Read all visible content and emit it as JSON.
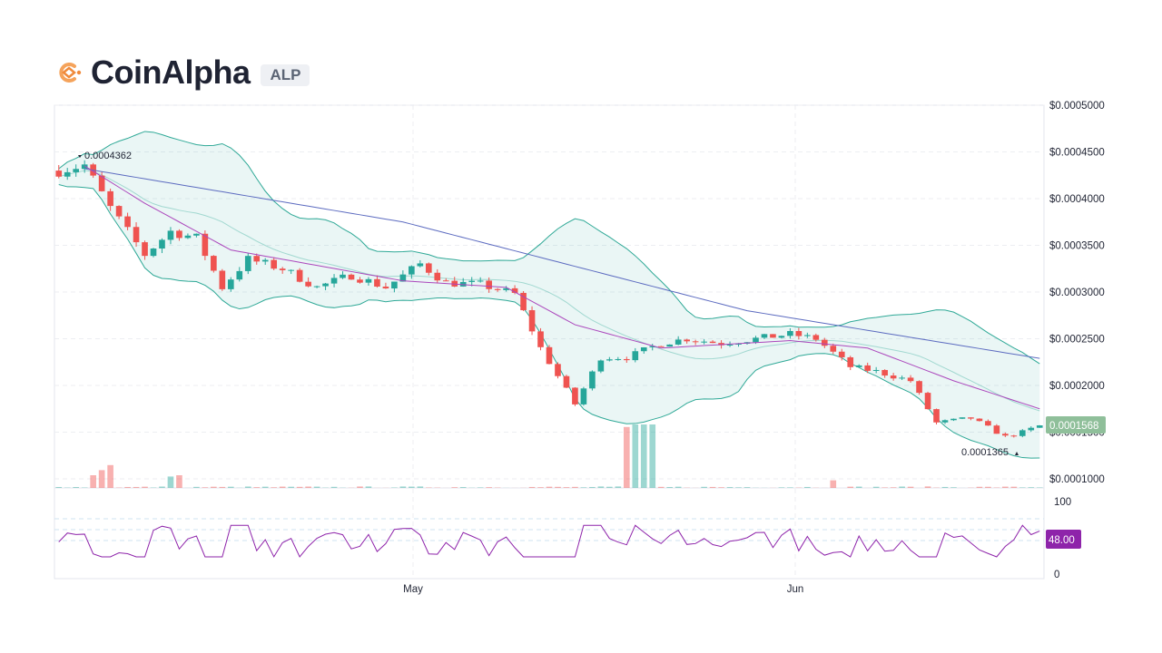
{
  "header": {
    "name": "CoinAlpha",
    "ticker": "ALP"
  },
  "colors": {
    "up": "#26a69a",
    "down": "#ef5350",
    "bands": "#1aa08c",
    "ma_long": "#5c6bc0",
    "ma_short": "#ab47bc",
    "rsi": "#8e24aa",
    "last_price_tag": "#8fbf9a",
    "rsi_tag": "#8e24aa"
  },
  "chart_data": {
    "type": "candlestick",
    "price_axis": {
      "min": 0.0001,
      "max": 0.0005,
      "ticks": [
        "$0.0005000",
        "$0.0004500",
        "$0.0004000",
        "$0.0003500",
        "$0.0003000",
        "$0.0002500",
        "$0.0002000",
        "$0.0001500",
        "$0.0001000"
      ]
    },
    "x_labels": [
      "May",
      "Jun"
    ],
    "last_price": "0.0001568",
    "high_marker": "0.0004362",
    "low_marker": "0.0001365",
    "price_path": [
      [
        0,
        0.00043
      ],
      [
        3,
        0.000436
      ],
      [
        6,
        0.00039
      ],
      [
        10,
        0.00034
      ],
      [
        13,
        0.000365
      ],
      [
        16,
        0.000358
      ],
      [
        19,
        0.000305
      ],
      [
        22,
        0.000335
      ],
      [
        26,
        0.000325
      ],
      [
        30,
        0.000305
      ],
      [
        34,
        0.000318
      ],
      [
        38,
        0.000305
      ],
      [
        42,
        0.00033
      ],
      [
        45,
        0.00031
      ],
      [
        49,
        0.000308
      ],
      [
        53,
        0.000298
      ],
      [
        56,
        0.00024
      ],
      [
        60,
        0.00018
      ],
      [
        63,
        0.00023
      ],
      [
        66,
        0.00023
      ],
      [
        70,
        0.000245
      ],
      [
        73,
        0.00025
      ],
      [
        77,
        0.000245
      ],
      [
        81,
        0.00025
      ],
      [
        85,
        0.000255
      ],
      [
        88,
        0.00025
      ],
      [
        92,
        0.00022
      ],
      [
        95,
        0.000215
      ],
      [
        99,
        0.000205
      ],
      [
        102,
        0.00016
      ],
      [
        106,
        0.000165
      ],
      [
        110,
        0.000145
      ],
      [
        112,
        0.00015
      ],
      [
        114,
        0.0001568
      ]
    ],
    "ma_long": [
      [
        3,
        0.000432
      ],
      [
        40,
        0.000375
      ],
      [
        80,
        0.00028
      ],
      [
        114,
        0.000229
      ]
    ],
    "ma_short": [
      [
        3,
        0.000435
      ],
      [
        10,
        0.000395
      ],
      [
        20,
        0.000345
      ],
      [
        40,
        0.000312
      ],
      [
        52,
        0.000305
      ],
      [
        60,
        0.000265
      ],
      [
        70,
        0.00024
      ],
      [
        85,
        0.000248
      ],
      [
        94,
        0.00024
      ],
      [
        104,
        0.000205
      ],
      [
        114,
        0.000175
      ]
    ],
    "volume_spikes": [
      [
        4,
        1.0
      ],
      [
        5,
        1.4
      ],
      [
        6,
        1.8
      ],
      [
        13,
        0.9
      ],
      [
        14,
        1.0
      ],
      [
        66,
        4.8
      ],
      [
        67,
        5.0
      ],
      [
        68,
        5.0
      ],
      [
        69,
        5.0
      ],
      [
        90,
        0.6
      ]
    ],
    "rsi": {
      "levels": [
        70,
        50,
        30
      ],
      "axis_labels": [
        "100",
        "0"
      ],
      "last_value": "48.00"
    }
  }
}
